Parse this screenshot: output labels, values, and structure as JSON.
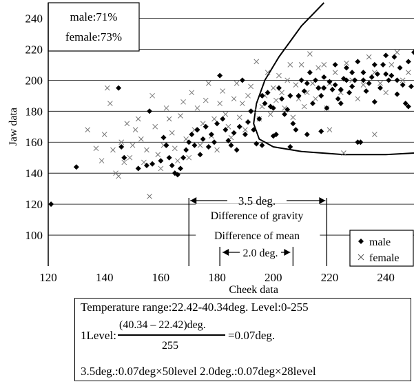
{
  "chart_data": {
    "type": "scatter",
    "xlabel": "Cheek data",
    "ylabel": "Jaw data",
    "xlim": [
      120,
      250
    ],
    "ylim": [
      80,
      250
    ],
    "xticks": [
      120,
      140,
      160,
      180,
      200,
      220,
      240
    ],
    "yticks": [
      100,
      120,
      140,
      160,
      180,
      200,
      220,
      240
    ],
    "grid": "horizontal",
    "legend_position": "bottom-right",
    "rates": [
      "male:71%",
      "female:73%"
    ],
    "series": [
      {
        "name": "male",
        "marker": "diamond",
        "points": [
          [
            121,
            120
          ],
          [
            130,
            144
          ],
          [
            145,
            195
          ],
          [
            146,
            157
          ],
          [
            147,
            150
          ],
          [
            152,
            143
          ],
          [
            155,
            145
          ],
          [
            156,
            180
          ],
          [
            157,
            146
          ],
          [
            160,
            148
          ],
          [
            161,
            163
          ],
          [
            162,
            158
          ],
          [
            163,
            150
          ],
          [
            164,
            145
          ],
          [
            165,
            140
          ],
          [
            166,
            139
          ],
          [
            167,
            143
          ],
          [
            168,
            150
          ],
          [
            169,
            155
          ],
          [
            170,
            160
          ],
          [
            171,
            165
          ],
          [
            172,
            158
          ],
          [
            173,
            168
          ],
          [
            174,
            152
          ],
          [
            175,
            162
          ],
          [
            176,
            170
          ],
          [
            177,
            157
          ],
          [
            178,
            165
          ],
          [
            179,
            160
          ],
          [
            180,
            172
          ],
          [
            181,
            203
          ],
          [
            182,
            175
          ],
          [
            183,
            168
          ],
          [
            184,
            161
          ],
          [
            185,
            158
          ],
          [
            186,
            166
          ],
          [
            187,
            155
          ],
          [
            188,
            170
          ],
          [
            189,
            200
          ],
          [
            190,
            165
          ],
          [
            191,
            173
          ],
          [
            192,
            180
          ],
          [
            193,
            168
          ],
          [
            194,
            159
          ],
          [
            195,
            175
          ],
          [
            196,
            190
          ],
          [
            197,
            185
          ],
          [
            198,
            192
          ],
          [
            199,
            183
          ],
          [
            200,
            182
          ],
          [
            201,
            165
          ],
          [
            202,
            195
          ],
          [
            203,
            188
          ],
          [
            204,
            178
          ],
          [
            205,
            181
          ],
          [
            206,
            190
          ],
          [
            207,
            172
          ],
          [
            208,
            168
          ],
          [
            209,
            190
          ],
          [
            210,
            200
          ],
          [
            211,
            193
          ],
          [
            212,
            198
          ],
          [
            213,
            205
          ],
          [
            214,
            185
          ],
          [
            215,
            200
          ],
          [
            216,
            195
          ],
          [
            217,
            190
          ],
          [
            218,
            202
          ],
          [
            219,
            182
          ],
          [
            220,
            199
          ],
          [
            221,
            194
          ],
          [
            222,
            210
          ],
          [
            223,
            188
          ],
          [
            224,
            185
          ],
          [
            225,
            201
          ],
          [
            226,
            208
          ],
          [
            227,
            192
          ],
          [
            228,
            196
          ],
          [
            229,
            200
          ],
          [
            230,
            212
          ],
          [
            231,
            160
          ],
          [
            232,
            205
          ],
          [
            233,
            193
          ],
          [
            234,
            198
          ],
          [
            235,
            202
          ],
          [
            236,
            186
          ],
          [
            237,
            204
          ],
          [
            238,
            195
          ],
          [
            239,
            210
          ],
          [
            240,
            216
          ],
          [
            241,
            200
          ],
          [
            242,
            203
          ],
          [
            243,
            215
          ],
          [
            244,
            191
          ],
          [
            245,
            208
          ],
          [
            246,
            197
          ],
          [
            247,
            185
          ],
          [
            248,
            212
          ],
          [
            249,
            196
          ],
          [
            250,
            218
          ],
          [
            218,
            195
          ],
          [
            222,
            197
          ],
          [
            226,
            200
          ],
          [
            224,
            194
          ],
          [
            228,
            205
          ],
          [
            232,
            200
          ],
          [
            236,
            210
          ],
          [
            240,
            204
          ],
          [
            244,
            200
          ],
          [
            248,
            183
          ],
          [
            212,
            165
          ],
          [
            217,
            167
          ],
          [
            230,
            160
          ],
          [
            206,
            157
          ],
          [
            200,
            164
          ],
          [
            196,
            158
          ]
        ]
      },
      {
        "name": "female",
        "marker": "x",
        "points": [
          [
            134,
            168
          ],
          [
            137,
            156
          ],
          [
            139,
            148
          ],
          [
            140,
            165
          ],
          [
            141,
            195
          ],
          [
            142,
            185
          ],
          [
            143,
            155
          ],
          [
            144,
            140
          ],
          [
            145,
            138
          ],
          [
            146,
            160
          ],
          [
            147,
            147
          ],
          [
            148,
            172
          ],
          [
            149,
            150
          ],
          [
            150,
            158
          ],
          [
            151,
            168
          ],
          [
            152,
            175
          ],
          [
            153,
            162
          ],
          [
            154,
            147
          ],
          [
            155,
            155
          ],
          [
            156,
            125
          ],
          [
            157,
            190
          ],
          [
            158,
            170
          ],
          [
            159,
            152
          ],
          [
            160,
            143
          ],
          [
            161,
            158
          ],
          [
            162,
            182
          ],
          [
            163,
            175
          ],
          [
            164,
            166
          ],
          [
            165,
            156
          ],
          [
            166,
            148
          ],
          [
            167,
            177
          ],
          [
            168,
            186
          ],
          [
            169,
            162
          ],
          [
            170,
            150
          ],
          [
            171,
            192
          ],
          [
            172,
            168
          ],
          [
            173,
            182
          ],
          [
            174,
            158
          ],
          [
            175,
            172
          ],
          [
            176,
            187
          ],
          [
            177,
            198
          ],
          [
            178,
            164
          ],
          [
            179,
            175
          ],
          [
            180,
            155
          ],
          [
            181,
            185
          ],
          [
            182,
            193
          ],
          [
            183,
            178
          ],
          [
            184,
            170
          ],
          [
            185,
            163
          ],
          [
            186,
            188
          ],
          [
            187,
            198
          ],
          [
            188,
            176
          ],
          [
            189,
            185
          ],
          [
            190,
            168
          ],
          [
            191,
            190
          ],
          [
            192,
            196
          ],
          [
            193,
            180
          ],
          [
            194,
            212
          ],
          [
            195,
            175
          ],
          [
            196,
            183
          ],
          [
            197,
            190
          ],
          [
            198,
            205
          ],
          [
            199,
            178
          ],
          [
            200,
            195
          ],
          [
            201,
            187
          ],
          [
            202,
            203
          ],
          [
            203,
            192
          ],
          [
            204,
            182
          ],
          [
            205,
            200
          ],
          [
            206,
            210
          ],
          [
            207,
            176
          ],
          [
            208,
            197
          ],
          [
            209,
            188
          ],
          [
            210,
            210
          ],
          [
            211,
            183
          ],
          [
            212,
            192
          ],
          [
            213,
            217
          ],
          [
            214,
            198
          ],
          [
            215,
            188
          ],
          [
            216,
            208
          ],
          [
            217,
            195
          ],
          [
            218,
            210
          ],
          [
            219,
            182
          ],
          [
            220,
            198
          ],
          [
            222,
            205
          ],
          [
            224,
            192
          ],
          [
            226,
            211
          ],
          [
            228,
            200
          ],
          [
            230,
            188
          ],
          [
            232,
            197
          ],
          [
            234,
            215
          ],
          [
            236,
            205
          ],
          [
            238,
            198
          ],
          [
            240,
            192
          ],
          [
            242,
            210
          ],
          [
            244,
            218
          ],
          [
            246,
            200
          ],
          [
            248,
            205
          ],
          [
            225,
            153
          ],
          [
            220,
            168
          ],
          [
            236,
            165
          ]
        ]
      }
    ],
    "annotations": {
      "gravity_value": "3.5 deg.",
      "gravity_label": "Difference of gravity",
      "mean_label": "Difference of mean",
      "mean_value": "2.0 deg.",
      "gravity_range": [
        170,
        219
      ],
      "mean_range": [
        181,
        207
      ]
    }
  },
  "calc": {
    "line1": "Temperature range:22.42-40.34deg. Level:0-255",
    "level_prefix": "1Level:",
    "numerator": "(40.34 – 22.42)deg.",
    "denominator": "255",
    "result": "=0.07deg.",
    "line3": "3.5deg.:0.07deg×50level 2.0deg.:0.07deg×28level"
  }
}
